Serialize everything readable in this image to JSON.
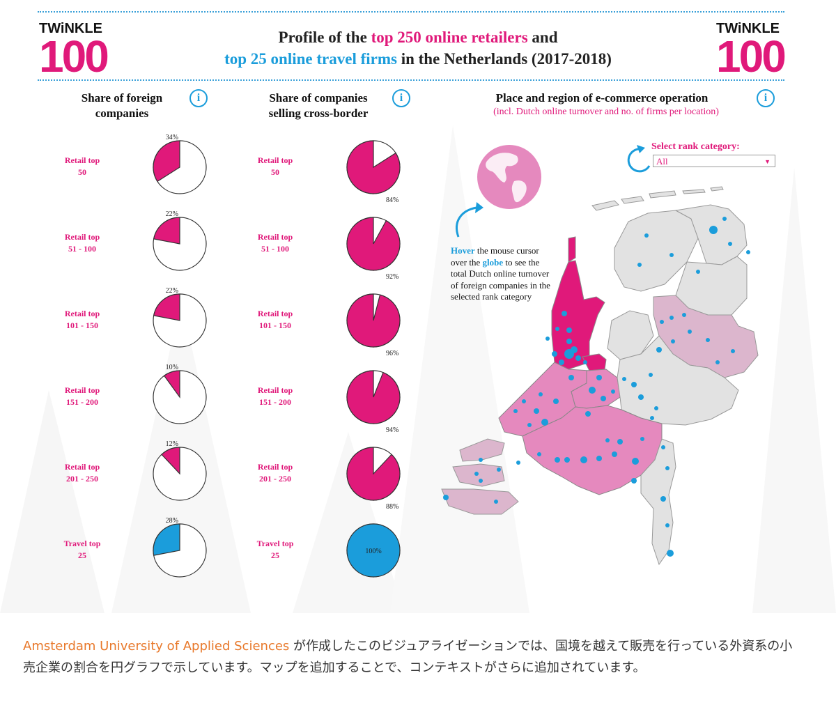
{
  "logo": {
    "word": "TWiNKLE",
    "number": "100"
  },
  "title": {
    "line1_a": "Profile of the ",
    "line1_b": "top 250 online retailers",
    "line1_c": " and",
    "line2_a": "top 25 online travel firms",
    "line2_b": " in the Netherlands (2017-2018)"
  },
  "colors": {
    "pink": "#e0197a",
    "blue": "#1b9ddb",
    "light_pink": "#e589be",
    "pale_pink": "#dcb6cd",
    "gray": "#e2e2e2"
  },
  "columns": {
    "foreign_title": "Share of foreign companies",
    "crossborder_title": "Share of companies selling cross-border",
    "map_title": "Place and region of e-commerce operation",
    "map_subtitle": "(incl. Dutch online turnover and no. of firms per location)",
    "info_icon": "i"
  },
  "rows": [
    {
      "label": "Retail top\n50"
    },
    {
      "label": "Retail top\n51 - 100"
    },
    {
      "label": "Retail top\n101 - 150"
    },
    {
      "label": "Retail top\n151 - 200"
    },
    {
      "label": "Retail top\n201 - 250"
    },
    {
      "label": "Travel top\n25"
    }
  ],
  "chart_data": [
    {
      "type": "pie",
      "title": "Share of foreign companies",
      "categories": [
        "Retail top 50",
        "Retail top 51 - 100",
        "Retail top 101 - 150",
        "Retail top 151 - 200",
        "Retail top 201 - 250",
        "Travel top 25"
      ],
      "values": [
        34,
        22,
        22,
        10,
        12,
        28
      ],
      "labels": [
        "34%",
        "22%",
        "22%",
        "10%",
        "12%",
        "28%"
      ],
      "colors": [
        "#e0197a",
        "#e0197a",
        "#e0197a",
        "#e0197a",
        "#e0197a",
        "#1b9ddb"
      ]
    },
    {
      "type": "pie",
      "title": "Share of companies selling cross-border",
      "categories": [
        "Retail top 50",
        "Retail top 51 - 100",
        "Retail top 101 - 150",
        "Retail top 151 - 200",
        "Retail top 201 - 250",
        "Travel top 25"
      ],
      "values": [
        84,
        92,
        96,
        94,
        88,
        100
      ],
      "labels": [
        "84%",
        "92%",
        "96%",
        "94%",
        "88%",
        "100%"
      ],
      "colors": [
        "#e0197a",
        "#e0197a",
        "#e0197a",
        "#e0197a",
        "#e0197a",
        "#1b9ddb"
      ]
    }
  ],
  "map": {
    "select_label": "Select rank category:",
    "select_value": "All",
    "hover_word": "Hover",
    "hover_text_1": " the mouse cursor over the ",
    "globe_word": "globe",
    "hover_text_2": " to see the total Dutch online turnover of foreign companies in the selected rank category",
    "icons": [
      "globe-icon",
      "refresh-icon",
      "arrow-icon"
    ]
  },
  "caption": {
    "source": "Amsterdam University of Applied Sciences",
    "text": " が作成したこのビジュアライゼーションでは、国境を越えて販売を行っている外資系の小売企業の割合を円グラフで示しています。マップを追加することで、コンテキストがさらに追加されています。"
  }
}
